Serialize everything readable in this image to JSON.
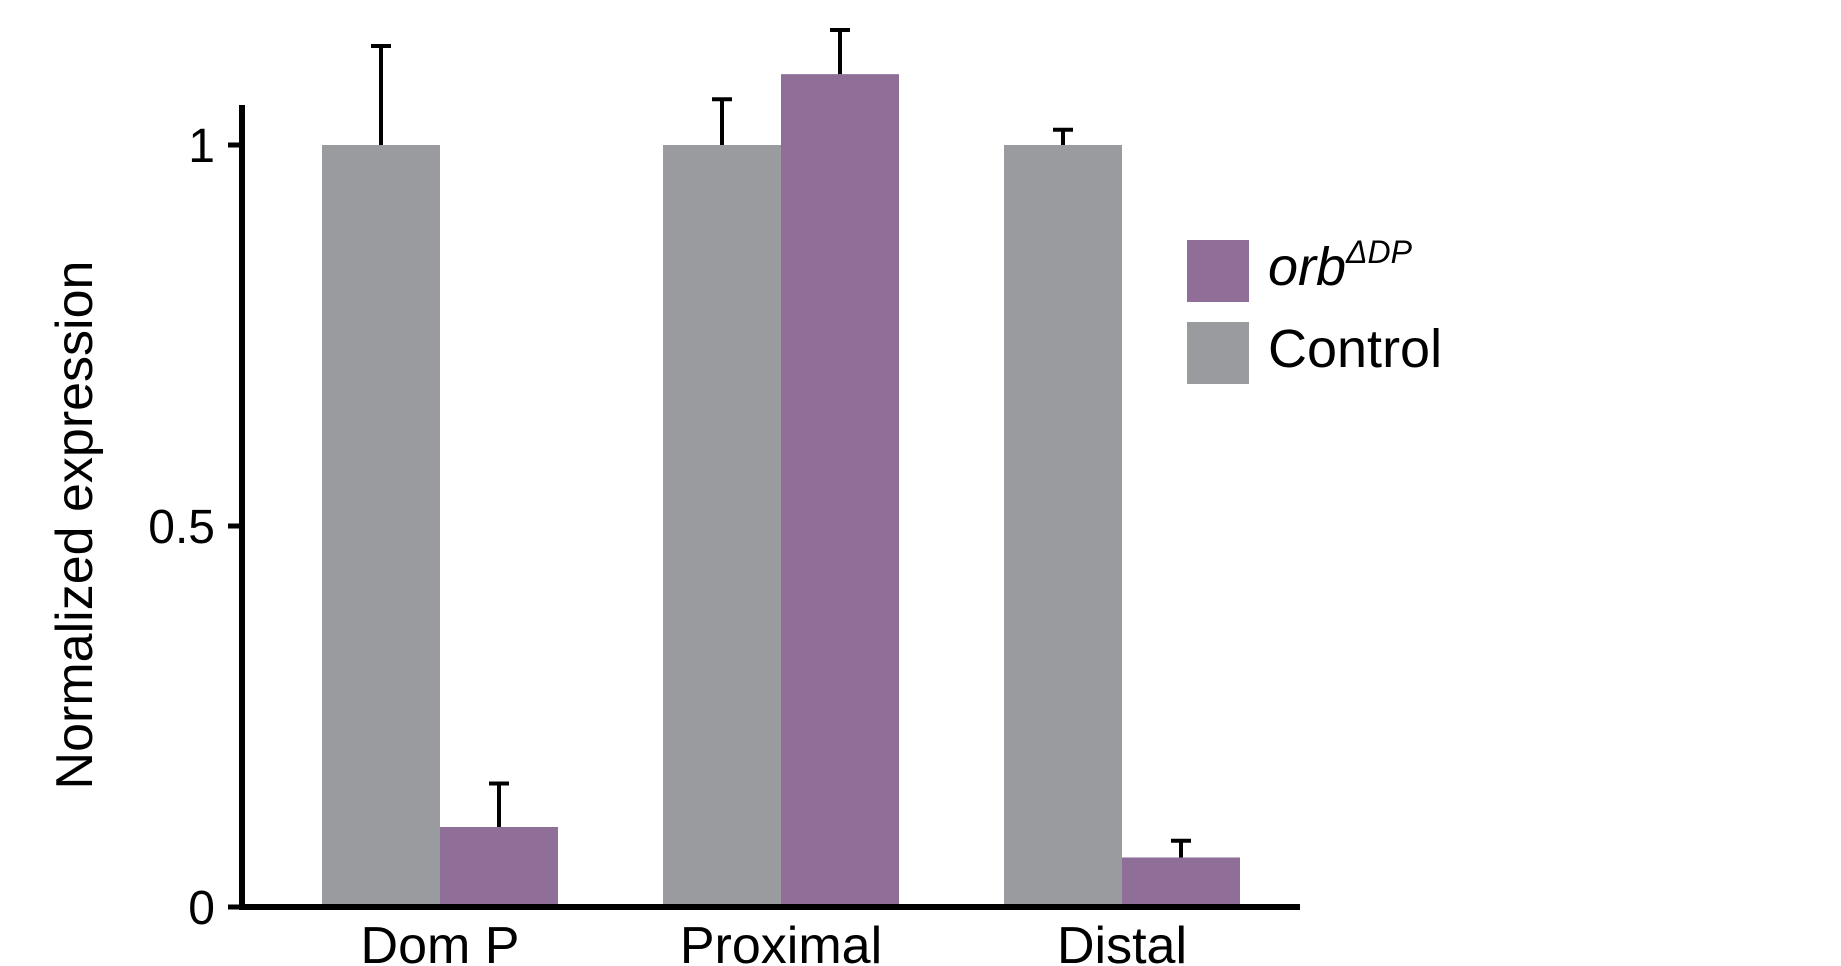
{
  "chart_data": {
    "type": "bar",
    "categories": [
      "Dom P",
      "Proximal",
      "Distal"
    ],
    "series": [
      {
        "name": "Control",
        "color": "#9a9b9e",
        "values": [
          1.0,
          1.0,
          1.0
        ],
        "errors": [
          0.13,
          0.06,
          0.02
        ]
      },
      {
        "name": "orb",
        "name_superscript": "ΔDP",
        "color": "#8f6e98",
        "values": [
          0.105,
          1.093,
          0.065
        ],
        "errors": [
          0.057,
          0.058,
          0.022
        ]
      }
    ],
    "ylabel": "Normalized expression",
    "xlabel": "",
    "ylim": [
      0,
      1.1
    ],
    "yticks": [
      0,
      0.5,
      1
    ],
    "ytick_labels": [
      "0",
      "0.5",
      "1"
    ],
    "grid": false,
    "legend_position": "right",
    "legend_order": [
      "orb",
      "Control"
    ]
  }
}
